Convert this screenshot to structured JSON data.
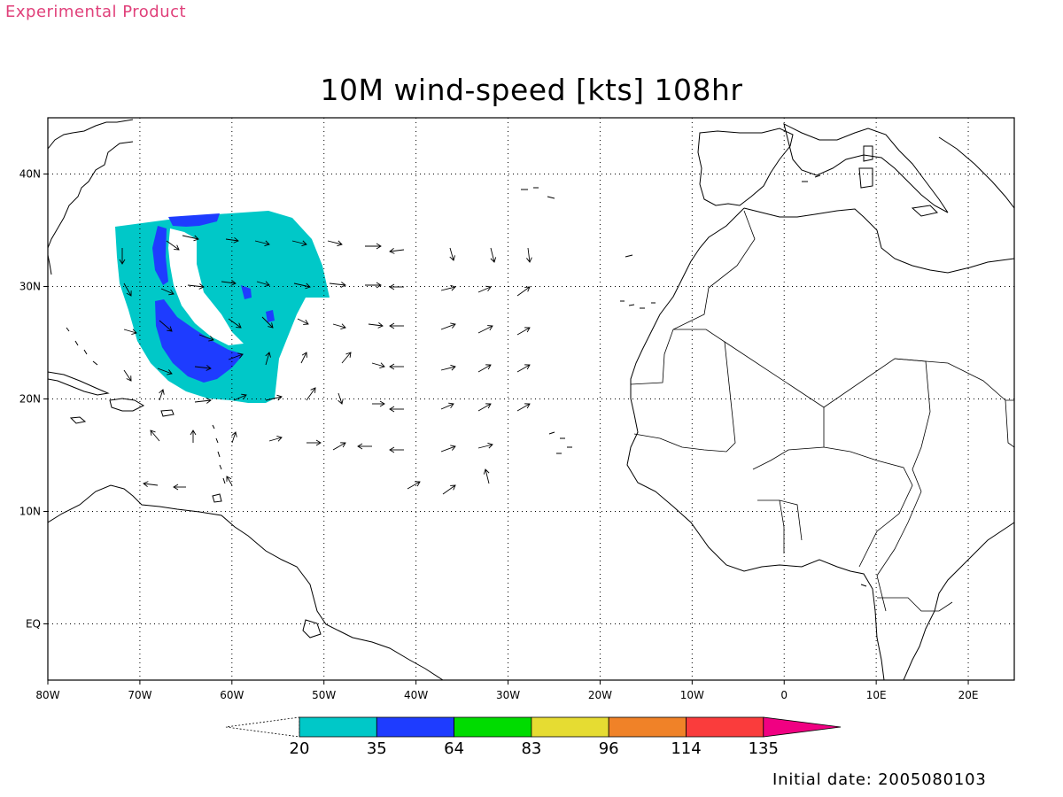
{
  "header": {
    "product_label": "Experimental Product",
    "title": "10M wind-speed [kts] 108hr"
  },
  "footer": {
    "initial_date": "Initial date: 2005080103"
  },
  "map": {
    "lon_range": [
      -80,
      25
    ],
    "lat_range": [
      -5,
      45
    ],
    "lon_ticks": [
      {
        "value": -80,
        "label": "80W"
      },
      {
        "value": -70,
        "label": "70W"
      },
      {
        "value": -60,
        "label": "60W"
      },
      {
        "value": -50,
        "label": "50W"
      },
      {
        "value": -40,
        "label": "40W"
      },
      {
        "value": -30,
        "label": "30W"
      },
      {
        "value": -20,
        "label": "20W"
      },
      {
        "value": -10,
        "label": "10W"
      },
      {
        "value": 0,
        "label": "0"
      },
      {
        "value": 10,
        "label": "10E"
      },
      {
        "value": 20,
        "label": "20E"
      }
    ],
    "lat_ticks": [
      {
        "value": 40,
        "label": "40N"
      },
      {
        "value": 30,
        "label": "30N"
      },
      {
        "value": 20,
        "label": "20N"
      },
      {
        "value": 10,
        "label": "10N"
      },
      {
        "value": 0,
        "label": "EQ"
      }
    ],
    "colors": {
      "background": "#ffffff",
      "coastline": "#000000",
      "grid": "#000000",
      "arrow": "#000000"
    }
  },
  "legend": {
    "lower_open_color": "#ffffff",
    "bins": [
      {
        "label": "20",
        "color": "#00c8c8"
      },
      {
        "label": "35",
        "color": "#1e3cff"
      },
      {
        "label": "64",
        "color": "#00dc00"
      },
      {
        "label": "83",
        "color": "#e6dc32"
      },
      {
        "label": "96",
        "color": "#f08228"
      },
      {
        "label": "114",
        "color": "#fa3c3c"
      },
      {
        "label": "135",
        "color": "#f00082"
      }
    ]
  }
}
